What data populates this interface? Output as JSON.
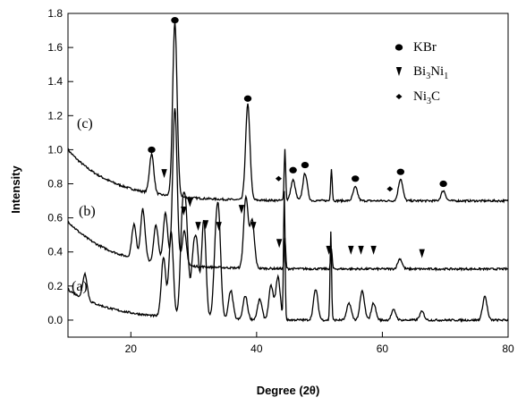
{
  "chart_data": {
    "type": "line",
    "xlabel": "Degree (2θ)",
    "ylabel": "Intensity",
    "xlim": [
      10,
      80
    ],
    "ylim": [
      -0.1,
      1.8
    ],
    "x_ticks": [
      20,
      40,
      60,
      80
    ],
    "y_ticks": [
      0.0,
      0.2,
      0.4,
      0.6,
      0.8,
      1.0,
      1.2,
      1.4,
      1.6,
      1.8
    ],
    "grid": false,
    "legend_position": "top-right",
    "legend": [
      {
        "label": "KBr",
        "marker": "circle"
      },
      {
        "label": "Bi3Ni1",
        "marker": "triangle-down"
      },
      {
        "label": "Ni3C",
        "marker": "diamond"
      }
    ],
    "series": [
      {
        "label": "(c)",
        "baseline": 0.7,
        "start_value": 1.0,
        "peaks": [
          {
            "x": 23.3,
            "y": 0.93
          },
          {
            "x": 27.0,
            "y": 1.72
          },
          {
            "x": 38.6,
            "y": 1.26
          },
          {
            "x": 44.5,
            "y": 1.0
          },
          {
            "x": 45.8,
            "y": 0.82
          },
          {
            "x": 47.7,
            "y": 0.86
          },
          {
            "x": 51.9,
            "y": 0.89
          },
          {
            "x": 55.7,
            "y": 0.78
          },
          {
            "x": 62.9,
            "y": 0.83
          },
          {
            "x": 69.7,
            "y": 0.76
          }
        ]
      },
      {
        "label": "(b)",
        "baseline": 0.3,
        "start_value": 0.58,
        "peaks": [
          {
            "x": 20.5,
            "y": 0.5
          },
          {
            "x": 21.9,
            "y": 0.6
          },
          {
            "x": 24.0,
            "y": 0.52
          },
          {
            "x": 25.5,
            "y": 0.6
          },
          {
            "x": 27.0,
            "y": 1.22
          },
          {
            "x": 28.5,
            "y": 0.5
          },
          {
            "x": 38.3,
            "y": 0.72
          },
          {
            "x": 39.3,
            "y": 0.58
          },
          {
            "x": 44.5,
            "y": 0.48
          },
          {
            "x": 51.9,
            "y": 0.42
          },
          {
            "x": 62.8,
            "y": 0.36
          }
        ]
      },
      {
        "label": "(a)",
        "baseline": 0.0,
        "start_value": 0.18,
        "peaks": [
          {
            "x": 12.7,
            "y": 0.15
          },
          {
            "x": 25.2,
            "y": 0.35
          },
          {
            "x": 26.4,
            "y": 0.5
          },
          {
            "x": 28.2,
            "y": 0.55
          },
          {
            "x": 28.8,
            "y": 0.52
          },
          {
            "x": 29.9,
            "y": 0.32
          },
          {
            "x": 30.5,
            "y": 0.38
          },
          {
            "x": 31.6,
            "y": 0.58
          },
          {
            "x": 33.5,
            "y": 0.38
          },
          {
            "x": 34.0,
            "y": 0.5
          },
          {
            "x": 35.9,
            "y": 0.17
          },
          {
            "x": 38.2,
            "y": 0.14
          },
          {
            "x": 40.5,
            "y": 0.12
          },
          {
            "x": 42.3,
            "y": 0.2
          },
          {
            "x": 43.4,
            "y": 0.25
          },
          {
            "x": 44.4,
            "y": 0.75
          },
          {
            "x": 49.4,
            "y": 0.18
          },
          {
            "x": 51.8,
            "y": 0.52
          },
          {
            "x": 54.7,
            "y": 0.1
          },
          {
            "x": 56.8,
            "y": 0.17
          },
          {
            "x": 58.6,
            "y": 0.1
          },
          {
            "x": 61.8,
            "y": 0.06
          },
          {
            "x": 66.3,
            "y": 0.05
          },
          {
            "x": 76.3,
            "y": 0.14
          }
        ]
      }
    ],
    "annotations": [
      {
        "marker": "circle",
        "x": 27.0,
        "y": 1.76
      },
      {
        "marker": "circle",
        "x": 23.3,
        "y": 1.0
      },
      {
        "marker": "circle",
        "x": 38.6,
        "y": 1.3
      },
      {
        "marker": "circle",
        "x": 45.8,
        "y": 0.88
      },
      {
        "marker": "circle",
        "x": 47.7,
        "y": 0.91
      },
      {
        "marker": "circle",
        "x": 55.7,
        "y": 0.83
      },
      {
        "marker": "circle",
        "x": 62.9,
        "y": 0.87
      },
      {
        "marker": "circle",
        "x": 69.7,
        "y": 0.8
      },
      {
        "marker": "diamond",
        "x": 43.5,
        "y": 0.83
      },
      {
        "marker": "diamond",
        "x": 61.2,
        "y": 0.77
      },
      {
        "marker": "triangle-down",
        "x": 25.3,
        "y": 0.86
      },
      {
        "marker": "triangle-down",
        "x": 28.4,
        "y": 0.64
      },
      {
        "marker": "triangle-down",
        "x": 29.4,
        "y": 0.69
      },
      {
        "marker": "triangle-down",
        "x": 30.7,
        "y": 0.55
      },
      {
        "marker": "triangle-down",
        "x": 31.9,
        "y": 0.56
      },
      {
        "marker": "triangle-down",
        "x": 34.0,
        "y": 0.55
      },
      {
        "marker": "triangle-down",
        "x": 37.6,
        "y": 0.65
      },
      {
        "marker": "triangle-down",
        "x": 39.5,
        "y": 0.55
      },
      {
        "marker": "triangle-down",
        "x": 43.6,
        "y": 0.45
      },
      {
        "marker": "triangle-down",
        "x": 51.5,
        "y": 0.41
      },
      {
        "marker": "triangle-down",
        "x": 55.0,
        "y": 0.41
      },
      {
        "marker": "triangle-down",
        "x": 56.6,
        "y": 0.41
      },
      {
        "marker": "triangle-down",
        "x": 58.6,
        "y": 0.41
      },
      {
        "marker": "triangle-down",
        "x": 66.3,
        "y": 0.39
      }
    ]
  }
}
